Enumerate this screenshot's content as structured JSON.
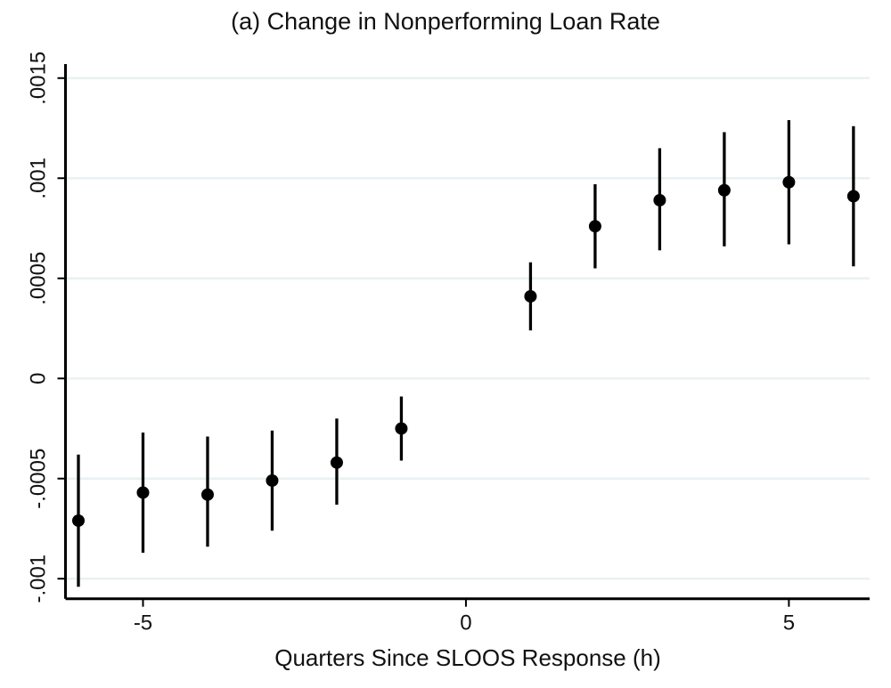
{
  "chart_data": {
    "type": "scatter",
    "subtype": "coefficient-event-study-with-confidence-intervals",
    "title": "(a) Change in Nonperforming Loan Rate",
    "xlabel": "Quarters Since SLOOS Response (h)",
    "ylabel": "",
    "xlim": [
      -6.2,
      6.25
    ],
    "ylim": [
      -0.0011,
      0.00157
    ],
    "x_ticks": [
      -5,
      0,
      5
    ],
    "x_tick_labels": [
      "-5",
      "0",
      "5"
    ],
    "y_ticks": [
      -0.001,
      -0.0005,
      0,
      0.0005,
      0.001,
      0.0015
    ],
    "y_tick_labels": [
      "-.001",
      "-.0005",
      "0",
      ".0005",
      ".001",
      ".0015"
    ],
    "grid": "horizontal",
    "legend": "none",
    "series": [
      {
        "name": "coefficient-estimate",
        "points": [
          {
            "x": -6,
            "y": -0.00071,
            "ci_low": -0.00104,
            "ci_high": -0.00038
          },
          {
            "x": -5,
            "y": -0.00057,
            "ci_low": -0.00087,
            "ci_high": -0.00027
          },
          {
            "x": -4,
            "y": -0.00058,
            "ci_low": -0.00084,
            "ci_high": -0.00029
          },
          {
            "x": -3,
            "y": -0.00051,
            "ci_low": -0.00076,
            "ci_high": -0.00026
          },
          {
            "x": -2,
            "y": -0.00042,
            "ci_low": -0.00063,
            "ci_high": -0.0002
          },
          {
            "x": -1,
            "y": -0.00025,
            "ci_low": -0.00041,
            "ci_high": -9e-05
          },
          {
            "x": 1,
            "y": 0.00041,
            "ci_low": 0.00024,
            "ci_high": 0.00058
          },
          {
            "x": 2,
            "y": 0.00076,
            "ci_low": 0.00055,
            "ci_high": 0.00097
          },
          {
            "x": 3,
            "y": 0.00089,
            "ci_low": 0.00064,
            "ci_high": 0.00115
          },
          {
            "x": 4,
            "y": 0.00094,
            "ci_low": 0.00066,
            "ci_high": 0.00123
          },
          {
            "x": 5,
            "y": 0.00098,
            "ci_low": 0.00067,
            "ci_high": 0.00129
          },
          {
            "x": 6,
            "y": 0.00091,
            "ci_low": 0.00056,
            "ci_high": 0.00126
          }
        ]
      }
    ],
    "colors": {
      "marker": "#000000",
      "error_bar": "#000000",
      "axis": "#000000",
      "gridline": "#e9f1f2",
      "background": "#ffffff",
      "text": "#111111"
    }
  }
}
